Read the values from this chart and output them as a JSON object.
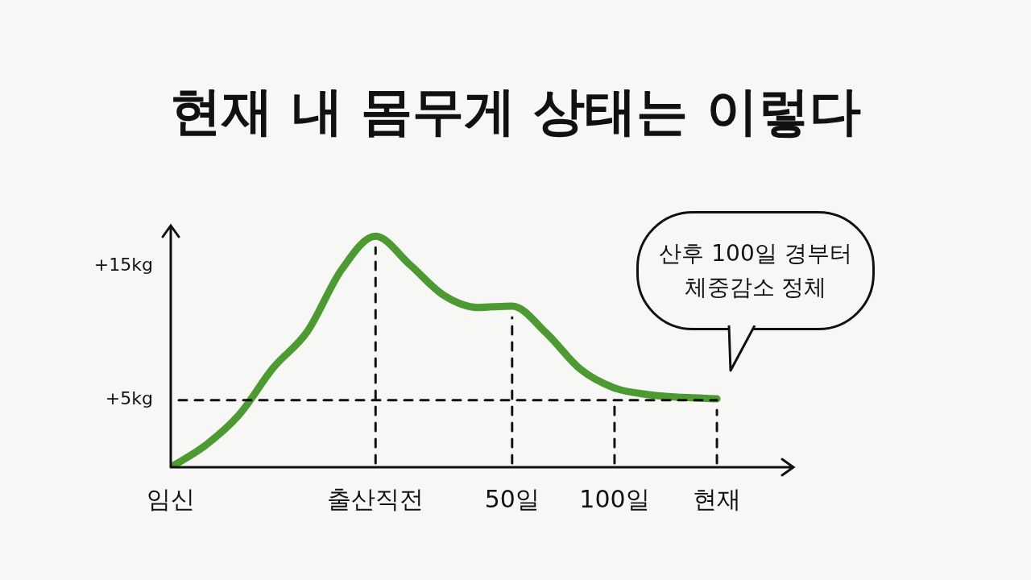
{
  "chart_data": {
    "type": "line",
    "title": "현재 내 몸무게 상태는 이렇다",
    "categories": [
      "임신",
      null,
      null,
      null,
      null,
      null,
      "출산직전",
      null,
      null,
      null,
      "50일",
      null,
      null,
      "100일",
      null,
      null,
      "현재"
    ],
    "series": [
      {
        "color": "#4e9a32",
        "values": [
          0,
          1.6,
          3.9,
          7.4,
          10.1,
          14.7,
          17.2,
          15.1,
          12.8,
          11.9,
          12.0,
          10.0,
          7.3,
          5.9,
          5.4,
          5.2,
          5.1
        ]
      }
    ],
    "ylim": [
      0,
      18
    ],
    "yticks": [
      {
        "value": 5,
        "label": "+5kg"
      },
      {
        "value": 15,
        "label": "+15kg"
      }
    ],
    "grid": false,
    "legend": false,
    "marker": "none",
    "line_style": "solid",
    "ref_lines": [
      {
        "axis": "y",
        "value": 5,
        "line_style": "dashed"
      },
      {
        "axis": "x",
        "value": "출산직전",
        "line_style": "dashed"
      },
      {
        "axis": "x",
        "value": "50일",
        "line_style": "dashed"
      },
      {
        "axis": "x",
        "value": "100일",
        "line_style": "dashed"
      },
      {
        "axis": "x",
        "value": "현재",
        "line_style": "dashed"
      }
    ],
    "annotations": [
      "산후 100일 경부터\n체중감소 정체"
    ]
  }
}
